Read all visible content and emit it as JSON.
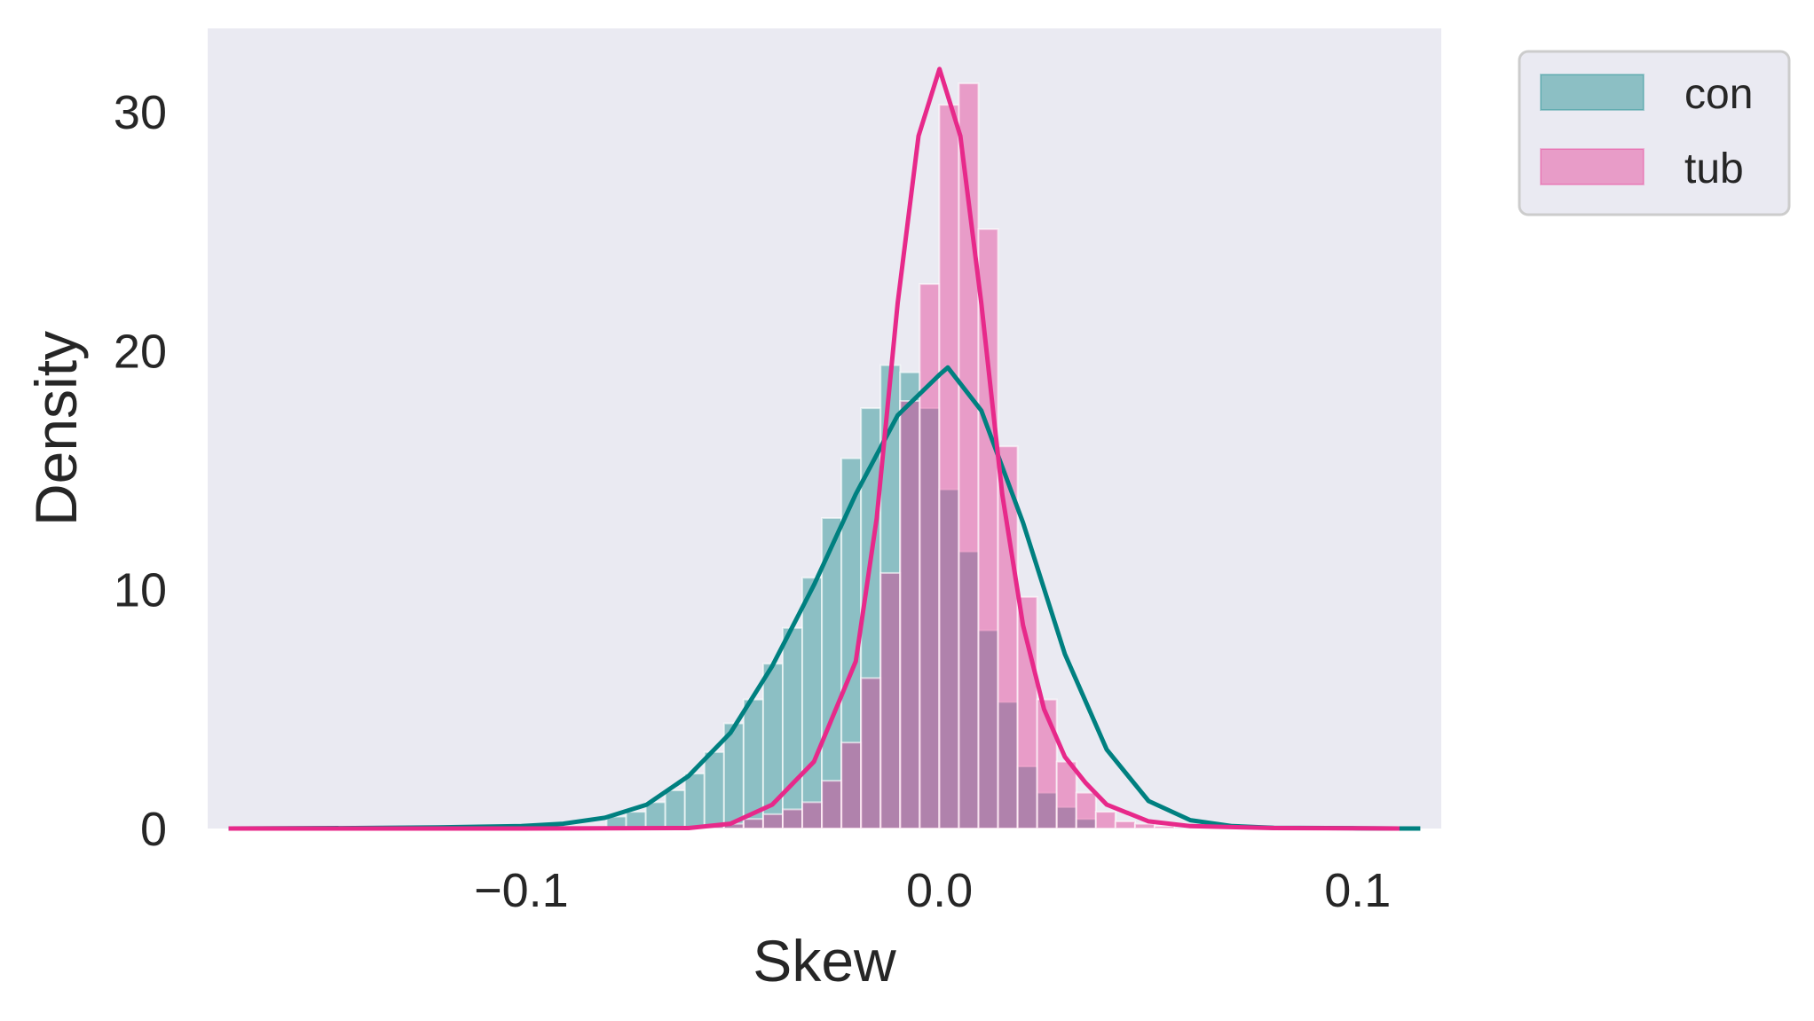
{
  "chart_data": {
    "type": "histogram",
    "xlabel": "Skew",
    "ylabel": "Density",
    "xlim": [
      -0.175,
      0.12
    ],
    "ylim": [
      0,
      33.5
    ],
    "grid": false,
    "legend_position": "outside-upper-right",
    "xticks": [
      {
        "value": -0.1,
        "label": "−0.1"
      },
      {
        "value": 0.0,
        "label": "0.0"
      },
      {
        "value": 0.1,
        "label": "0.1"
      }
    ],
    "yticks": [
      {
        "value": 0,
        "label": "0"
      },
      {
        "value": 10,
        "label": "10"
      },
      {
        "value": 20,
        "label": "20"
      },
      {
        "value": 30,
        "label": "30"
      }
    ],
    "series": [
      {
        "name": "con",
        "color": "#008080",
        "fill": "#8ec3c5",
        "hist": {
          "x_start": -0.0796,
          "bin_width": 0.00468,
          "values": [
            0.5,
            0.7,
            1.1,
            1.6,
            2.3,
            3.2,
            4.4,
            5.4,
            6.9,
            8.4,
            10.5,
            13.0,
            15.5,
            17.6,
            19.4,
            19.1,
            17.6,
            14.2,
            11.6,
            8.3,
            5.3,
            2.6,
            1.5,
            0.9,
            0.4
          ]
        },
        "kde": {
          "x": [
            -0.17,
            -0.14,
            -0.12,
            -0.1,
            -0.09,
            -0.08,
            -0.07,
            -0.06,
            -0.05,
            -0.04,
            -0.03,
            -0.02,
            -0.01,
            0.0,
            0.002,
            0.01,
            0.02,
            0.03,
            0.04,
            0.05,
            0.06,
            0.07,
            0.08,
            0.1,
            0.11,
            0.115
          ],
          "y": [
            0,
            0.02,
            0.05,
            0.1,
            0.2,
            0.45,
            1.0,
            2.2,
            4.0,
            6.8,
            10.2,
            14.0,
            17.3,
            19.0,
            19.3,
            17.5,
            12.8,
            7.3,
            3.3,
            1.15,
            0.35,
            0.1,
            0.03,
            0.01,
            0,
            0
          ]
        }
      },
      {
        "name": "tub",
        "color": "#e7298a",
        "fill": "#eba3d3",
        "hist": {
          "x_start": -0.0562,
          "bin_width": 0.00468,
          "values": [
            0.1,
            0.2,
            0.4,
            0.6,
            0.8,
            1.1,
            2.0,
            3.6,
            6.3,
            10.7,
            17.9,
            22.8,
            30.3,
            31.2,
            25.1,
            16.0,
            9.7,
            5.4,
            2.8,
            1.5,
            0.7,
            0.3,
            0.2,
            0.1
          ]
        },
        "kde": {
          "x": [
            -0.17,
            -0.1,
            -0.06,
            -0.05,
            -0.04,
            -0.03,
            -0.02,
            -0.015,
            -0.01,
            -0.005,
            0.0,
            0.005,
            0.01,
            0.015,
            0.02,
            0.025,
            0.03,
            0.035,
            0.04,
            0.05,
            0.06,
            0.08,
            0.1,
            0.11
          ],
          "y": [
            0,
            0,
            0.02,
            0.2,
            1.0,
            2.8,
            7.0,
            13.0,
            22.0,
            29.0,
            31.8,
            29.0,
            22.0,
            14.0,
            8.5,
            5.0,
            3.0,
            1.9,
            1.0,
            0.3,
            0.1,
            0.02,
            0.01,
            0
          ]
        }
      }
    ]
  }
}
